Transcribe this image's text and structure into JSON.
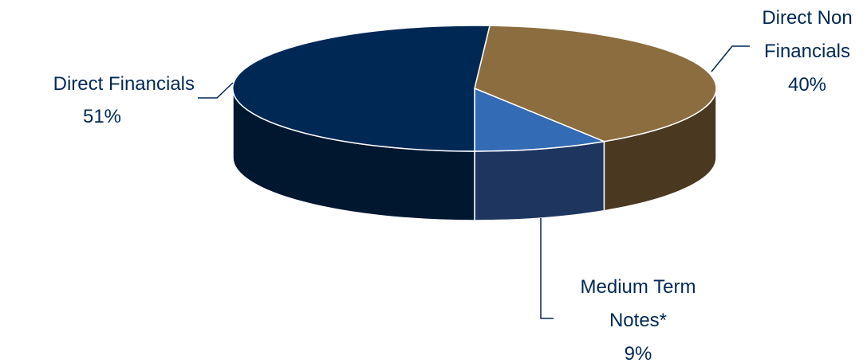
{
  "chart_data": {
    "type": "pie",
    "style": "3d",
    "slices": [
      {
        "name": "Direct Financials",
        "value": 51,
        "value_label": "51%",
        "color": "#002855",
        "side_color": "#001730"
      },
      {
        "name": "Direct Non Financials",
        "value": 40,
        "value_label": "40%",
        "color": "#8C6D3F",
        "side_color": "#4A3820"
      },
      {
        "name": "Medium Term Notes*",
        "value": 9,
        "value_label": "9%",
        "color": "#336BB5",
        "side_color": "#1E3560"
      }
    ],
    "label_color": "#002855",
    "leader_color": "#002855"
  }
}
